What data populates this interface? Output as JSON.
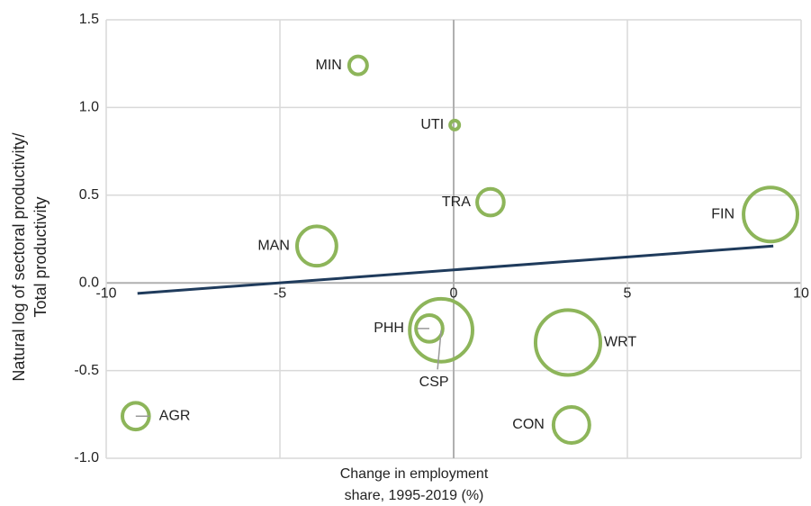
{
  "chart_data": {
    "type": "bubble",
    "y_label": [
      "Natural log of sectoral productivity/",
      "Total productivity"
    ],
    "x_label": [
      "Change in employment",
      "share, 1995-2019 (%)"
    ],
    "xlim": [
      -10,
      10
    ],
    "xticks": [
      -10,
      -5,
      0,
      5,
      10
    ],
    "ylim": [
      -1.0,
      1.5
    ],
    "yticks": [
      {
        "value": -1.0,
        "label": "-1.0"
      },
      -0.5,
      {
        "value": 0.0,
        "label": "0.0"
      },
      0.5,
      {
        "value": 1.0,
        "label": "1.0"
      },
      1.5
    ],
    "grid": true,
    "series": [
      {
        "color": "#8db55a",
        "labels": [
          "MIN",
          "UTI",
          "TRA",
          "FIN",
          "MAN",
          "PHH",
          "CSP",
          "WRT",
          "CON",
          "AGR"
        ],
        "x": [
          -2.75,
          0.03,
          1.06,
          9.12,
          -3.94,
          -0.7,
          -0.36,
          3.29,
          3.39,
          -9.15
        ],
        "y": [
          1.24,
          0.9,
          0.46,
          0.39,
          0.21,
          -0.26,
          -0.27,
          -0.34,
          -0.81,
          -0.76
        ],
        "size": [
          10,
          2.5,
          22,
          90,
          48,
          22,
          122,
          130,
          40,
          22
        ]
      }
    ],
    "trendline": {
      "color": "#1f3b5c",
      "x": [
        -9.1,
        9.2
      ],
      "y": [
        -0.06,
        0.21
      ]
    }
  }
}
